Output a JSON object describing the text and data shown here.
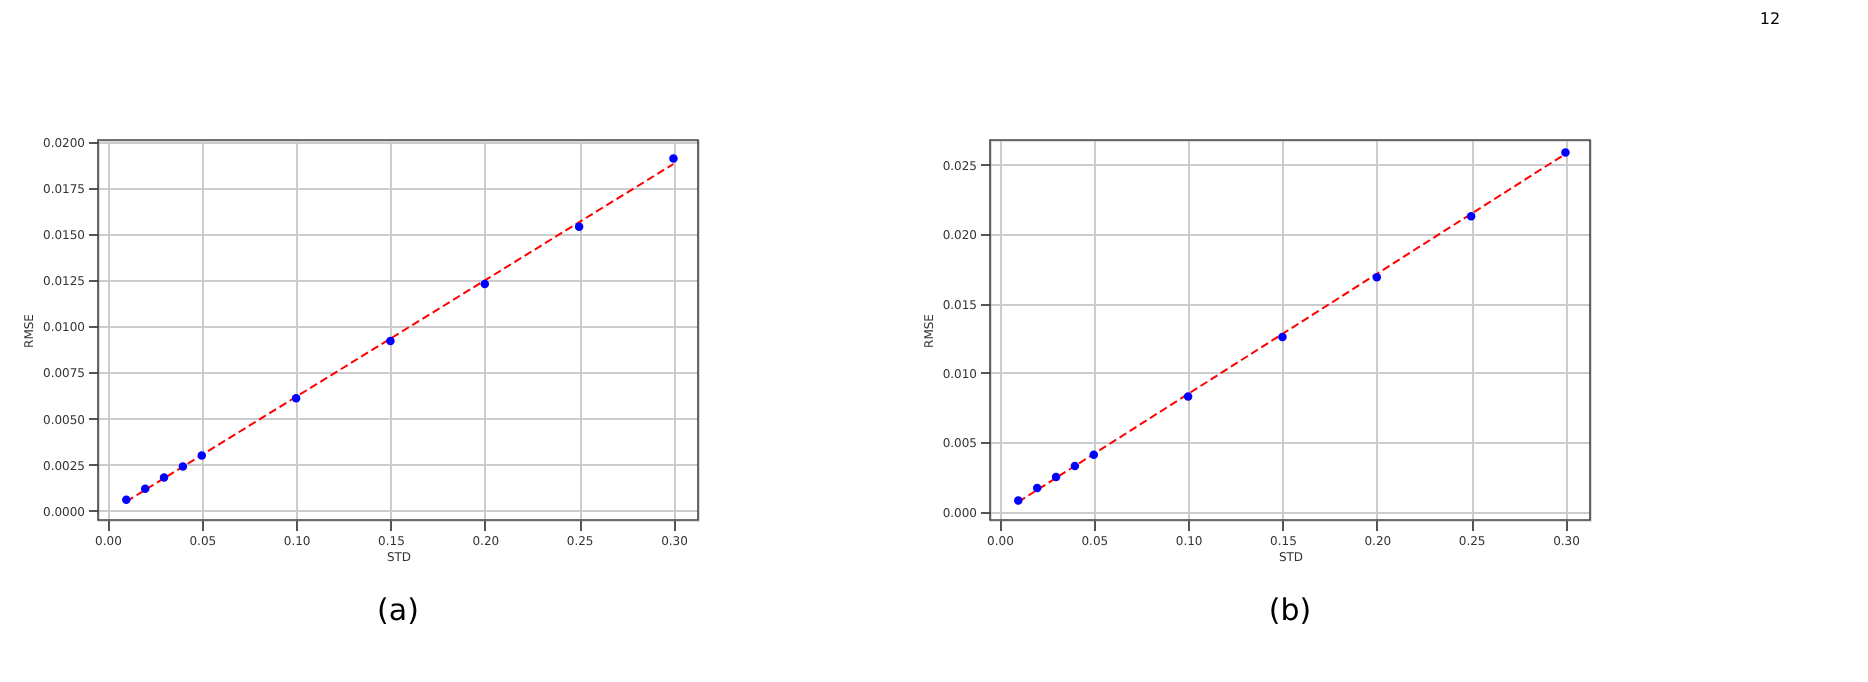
{
  "chart_data": [
    {
      "type": "scatter",
      "xlabel": "STD",
      "ylabel": "RMSE",
      "series": [
        {
          "type": "scatter",
          "marker": "circle",
          "color": "#0000ff",
          "x": [
            0.01,
            0.02,
            0.03,
            0.04,
            0.05,
            0.1,
            0.15,
            0.2,
            0.25,
            0.3
          ],
          "values": [
            0.0006,
            0.0012,
            0.0018,
            0.0024,
            0.003,
            0.0061,
            0.0092,
            0.0123,
            0.0154,
            0.0191
          ]
        },
        {
          "type": "line",
          "marker": "none",
          "color": "#ff0000",
          "line_style": "dashed",
          "x": [
            0.01,
            0.3
          ],
          "values": [
            0.0005,
            0.0188
          ]
        }
      ],
      "xlim": [
        -0.005,
        0.313
      ],
      "ylim": [
        -0.0005,
        0.0201
      ],
      "xticks": [
        {
          "value": 0.0,
          "label": "0.00"
        },
        0.05,
        {
          "value": 0.1,
          "label": "0.10"
        },
        0.15,
        {
          "value": 0.2,
          "label": "0.20"
        },
        0.25,
        {
          "value": 0.3,
          "label": "0.30"
        }
      ],
      "yticks": [
        {
          "value": 0,
          "label": "0.0000"
        },
        {
          "value": 0.0025,
          "label": "0.0025"
        },
        {
          "value": 0.005,
          "label": "0.0050"
        },
        {
          "value": 0.0075,
          "label": "0.0075"
        },
        {
          "value": 0.01,
          "label": "0.0100"
        },
        {
          "value": 0.0125,
          "label": "0.0125"
        },
        {
          "value": 0.015,
          "label": "0.0150"
        },
        {
          "value": 0.0175,
          "label": "0.0175"
        },
        {
          "value": 0.02,
          "label": "0.0200"
        }
      ],
      "grid": true,
      "annotations": [
        "(a)"
      ]
    },
    {
      "type": "scatter",
      "xlabel": "STD",
      "ylabel": "RMSE",
      "series": [
        {
          "type": "scatter",
          "marker": "circle",
          "color": "#0000ff",
          "x": [
            0.01,
            0.02,
            0.03,
            0.04,
            0.05,
            0.1,
            0.15,
            0.2,
            0.25,
            0.3
          ],
          "values": [
            0.0008,
            0.0017,
            0.0025,
            0.0033,
            0.0041,
            0.0083,
            0.0126,
            0.0169,
            0.0213,
            0.0259
          ]
        },
        {
          "type": "line",
          "marker": "none",
          "color": "#ff0000",
          "line_style": "dashed",
          "x": [
            0.01,
            0.3
          ],
          "values": [
            0.0007,
            0.0258
          ]
        }
      ],
      "xlim": [
        -0.005,
        0.313
      ],
      "ylim": [
        -0.0006,
        0.0268
      ],
      "xticks": [
        {
          "value": 0.0,
          "label": "0.00"
        },
        0.05,
        {
          "value": 0.1,
          "label": "0.10"
        },
        0.15,
        {
          "value": 0.2,
          "label": "0.20"
        },
        0.25,
        {
          "value": 0.3,
          "label": "0.30"
        }
      ],
      "yticks": [
        {
          "value": 0,
          "label": "0.000"
        },
        {
          "value": 0.005,
          "label": "0.005"
        },
        {
          "value": 0.01,
          "label": "0.010"
        },
        {
          "value": 0.015,
          "label": "0.015"
        },
        {
          "value": 0.02,
          "label": "0.020"
        },
        {
          "value": 0.025,
          "label": "0.025"
        }
      ],
      "grid": true,
      "annotations": [
        "(b)",
        "12"
      ]
    }
  ]
}
